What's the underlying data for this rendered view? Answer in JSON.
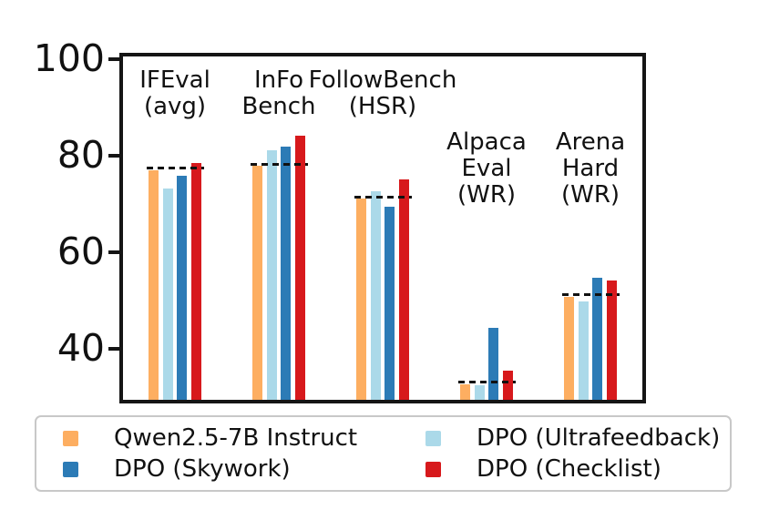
{
  "chart_data": {
    "type": "bar",
    "title": "",
    "xlabel": "",
    "ylabel": "",
    "categories": [
      "IFEval (avg)",
      "InFo Bench",
      "FollowBench (HSR)",
      "Alpaca Eval (WR)",
      "Arena Hard (WR)"
    ],
    "category_label_lines": [
      [
        "IFEval",
        "(avg)"
      ],
      [
        "InFo",
        "Bench"
      ],
      [
        "FollowBench",
        "(HSR)"
      ],
      [
        "Alpaca",
        "Eval",
        "(WR)"
      ],
      [
        "Arena",
        "Hard",
        "(WR)"
      ]
    ],
    "series": [
      {
        "name": "Qwen2.5-7B Instruct",
        "color": "#FDAE61",
        "values": [
          77.0,
          77.9,
          71.0,
          32.7,
          50.7
        ]
      },
      {
        "name": "DPO (Ultrafeedback)",
        "color": "#ABD9E9",
        "values": [
          73.1,
          81.0,
          72.6,
          32.4,
          49.8
        ]
      },
      {
        "name": "DPO (Skywork)",
        "color": "#2C7BB6",
        "values": [
          75.7,
          81.9,
          69.3,
          44.3,
          54.7
        ]
      },
      {
        "name": "DPO (Checklist)",
        "color": "#D7191C",
        "values": [
          78.4,
          84.1,
          75.1,
          35.5,
          54.2
        ]
      }
    ],
    "baseline_dashed_lines": {
      "description": "black dashed segment per group at the Qwen2.5-7B Instruct baseline level",
      "values": [
        77.4,
        78.2,
        71.4,
        33.1,
        51.1
      ]
    },
    "yticks": [
      40,
      60,
      80,
      100
    ],
    "ylim": [
      29.4,
      100.5
    ],
    "grid": false,
    "legend": {
      "position": "bottom",
      "columns": 2,
      "order_row_major": [
        "Qwen2.5-7B Instruct",
        "DPO (Ultrafeedback)",
        "DPO (Skywork)",
        "DPO (Checklist)"
      ]
    },
    "axis_color": "#151515",
    "text_color": "#111111",
    "dash_color": "#111111"
  }
}
